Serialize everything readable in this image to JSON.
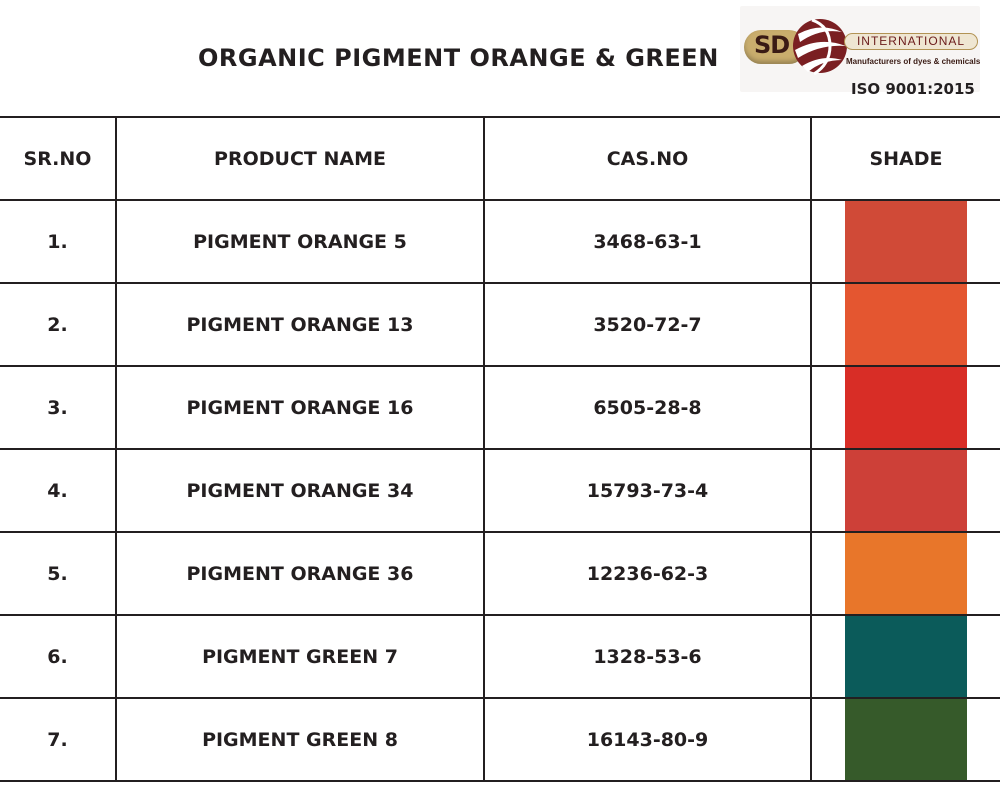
{
  "header": {
    "title": "ORGANIC PIGMENT ORANGE & GREEN",
    "logo": {
      "mark": "SD",
      "name": "INTERNATIONAL",
      "tagline": "Manufacturers of dyes & chemicals"
    },
    "certification": "ISO 9001:2015"
  },
  "table": {
    "columns": [
      "SR.NO",
      "PRODUCT NAME",
      "CAS.NO",
      "SHADE"
    ],
    "rows": [
      {
        "sr": "1.",
        "product": "PIGMENT ORANGE 5",
        "cas": "3468-63-1",
        "shade": "#d04a37"
      },
      {
        "sr": "2.",
        "product": "PIGMENT ORANGE 13",
        "cas": "3520-72-7",
        "shade": "#e45630"
      },
      {
        "sr": "3.",
        "product": "PIGMENT ORANGE 16",
        "cas": "6505-28-8",
        "shade": "#d82d26"
      },
      {
        "sr": "4.",
        "product": "PIGMENT ORANGE 34",
        "cas": "15793-73-4",
        "shade": "#cd4038"
      },
      {
        "sr": "5.",
        "product": "PIGMENT ORANGE 36",
        "cas": "12236-62-3",
        "shade": "#e8762a"
      },
      {
        "sr": "6.",
        "product": "PIGMENT GREEN 7",
        "cas": "1328-53-6",
        "shade": "#0b5b5a"
      },
      {
        "sr": "7.",
        "product": "PIGMENT GREEN 8",
        "cas": "16143-80-9",
        "shade": "#365a2a"
      }
    ]
  }
}
